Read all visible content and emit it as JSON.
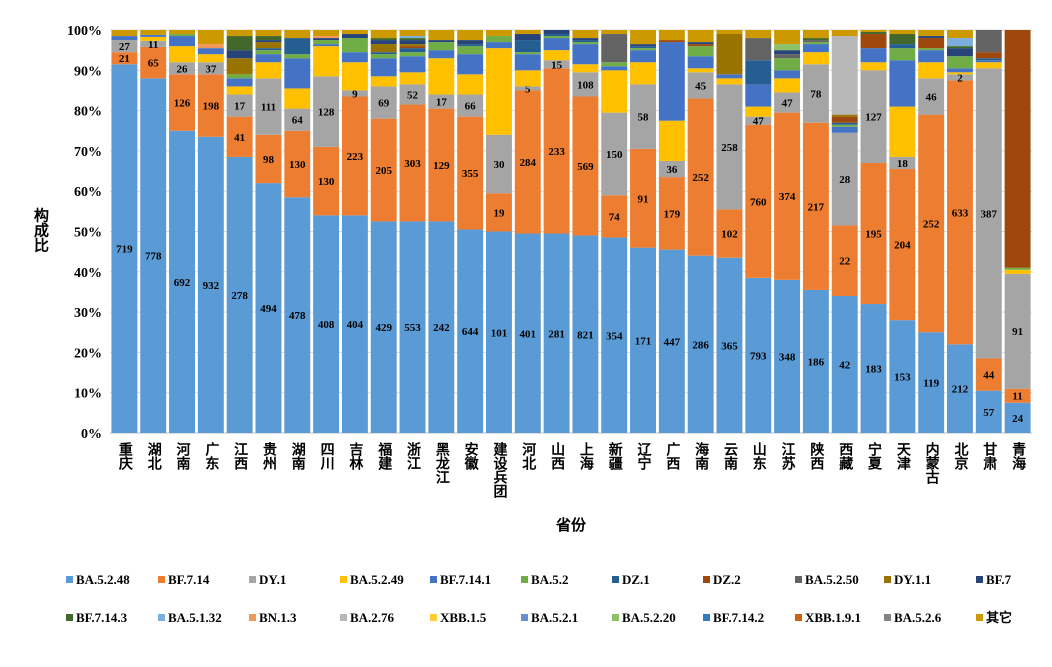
{
  "chart_data": {
    "type": "bar",
    "stacked": "percent",
    "title": "",
    "xlabel": "省份",
    "ylabel": "构成比",
    "ylim": [
      0,
      100
    ],
    "yticks": [
      "0%",
      "10%",
      "20%",
      "30%",
      "40%",
      "50%",
      "60%",
      "70%",
      "80%",
      "90%",
      "100%"
    ],
    "grid": true,
    "legend_position": "bottom",
    "categories": [
      "重庆",
      "湖北",
      "河南",
      "广东",
      "江西",
      "贵州",
      "湖南",
      "四川",
      "吉林",
      "福建",
      "浙江",
      "黑龙江",
      "安徽",
      "建设兵团",
      "河北",
      "山西",
      "上海",
      "新疆",
      "辽宁",
      "广西",
      "海南",
      "云南",
      "山东",
      "江苏",
      "陕西",
      "西藏",
      "宁夏",
      "天津",
      "内蒙古",
      "北京",
      "甘肃",
      "青海"
    ],
    "series": [
      {
        "name": "BA.5.2.48",
        "color": "#5B9BD5",
        "values": [
          91.5,
          88,
          75,
          73.5,
          68.5,
          62,
          58.5,
          54,
          54,
          52.5,
          52.5,
          52.5,
          50.5,
          50,
          49.5,
          49.5,
          49,
          48.5,
          46,
          45.5,
          44,
          43.5,
          38.5,
          38,
          35.5,
          34,
          32,
          28,
          25,
          22,
          10.5,
          7.5
        ],
        "labels": [
          719,
          778,
          692,
          932,
          278,
          494,
          478,
          408,
          404,
          429,
          553,
          242,
          644,
          101,
          401,
          281,
          821,
          354,
          171,
          447,
          286,
          365,
          793,
          348,
          186,
          42,
          183,
          153,
          119,
          212,
          57,
          24
        ]
      },
      {
        "name": "BF.7.14",
        "color": "#ED7D31",
        "values": [
          3,
          7.8,
          14,
          15.5,
          10,
          12,
          16.5,
          17,
          29.5,
          25.5,
          29,
          28,
          28,
          9.5,
          35.5,
          41,
          34.5,
          10.5,
          24.5,
          18,
          39,
          12,
          38,
          41.5,
          41.5,
          17.5,
          35,
          37.5,
          54,
          65.5,
          8,
          3.5
        ],
        "labels": [
          21,
          65,
          126,
          198,
          41,
          98,
          130,
          130,
          223,
          205,
          303,
          129,
          355,
          19,
          284,
          233,
          569,
          74,
          91,
          179,
          252,
          102,
          760,
          374,
          217,
          22,
          195,
          204,
          252,
          633,
          44,
          11
        ]
      },
      {
        "name": "DY.1",
        "color": "#A5A5A5",
        "values": [
          3,
          1.5,
          3,
          3,
          5.5,
          14,
          5.5,
          17.5,
          1.5,
          8,
          5,
          3.5,
          5.5,
          14.5,
          1,
          2,
          6,
          20.5,
          16,
          4,
          6.5,
          31,
          2,
          5,
          14.5,
          23,
          23,
          3,
          9,
          1.5,
          72,
          28.5
        ],
        "labels": [
          27,
          11,
          26,
          37,
          17,
          111,
          64,
          128,
          9,
          69,
          52,
          17,
          66,
          30,
          5,
          15,
          108,
          150,
          58,
          36,
          45,
          258,
          47,
          47,
          78,
          28,
          127,
          18,
          46,
          2,
          387,
          91
        ]
      },
      {
        "name": "BA.5.2.49",
        "color": "#FFC000",
        "values": [
          0,
          1,
          4,
          2,
          2,
          4,
          5,
          7.5,
          7,
          2.5,
          3,
          9,
          5,
          21.5,
          4,
          2.5,
          2,
          10.5,
          5.5,
          10,
          1,
          1.5,
          2.5,
          3.5,
          3,
          0,
          2,
          12.5,
          4,
          0.5,
          1.5,
          1
        ]
      },
      {
        "name": "BF.7.14.1",
        "color": "#4472C4",
        "values": [
          1,
          0.5,
          2.5,
          1.5,
          2,
          2,
          7.5,
          0.5,
          2.5,
          4.5,
          4,
          2,
          5,
          1.5,
          4,
          3,
          5,
          1,
          3,
          19.5,
          3,
          1,
          5.5,
          2,
          2,
          1.5,
          3.5,
          11.5,
          3,
          1,
          0.5,
          0
        ]
      },
      {
        "name": "BA.5.2",
        "color": "#70AD47",
        "values": [
          0,
          0,
          0.5,
          0,
          1,
          1,
          1,
          1,
          3.5,
          1,
          1,
          2,
          2,
          1.5,
          0.5,
          0.5,
          0.5,
          1,
          0.5,
          0,
          2.5,
          0,
          0,
          3,
          0.5,
          0.5,
          0,
          3,
          0.5,
          3,
          0,
          0.5
        ]
      },
      {
        "name": "DZ.1",
        "color": "#255E91",
        "values": [
          0,
          0,
          0,
          0,
          0,
          0.5,
          4,
          0,
          0,
          0.5,
          1,
          0,
          0.5,
          0,
          3,
          0.5,
          0.5,
          0,
          0.5,
          0,
          0,
          0,
          6,
          0,
          0,
          0.5,
          0,
          1,
          0,
          0,
          0.5,
          0
        ]
      },
      {
        "name": "DZ.2",
        "color": "#9E480E",
        "values": [
          0,
          0,
          0,
          0,
          0,
          0,
          0,
          0,
          0,
          0,
          0.5,
          0,
          0,
          0,
          0,
          0,
          0,
          0,
          0,
          0.5,
          0.5,
          0,
          0,
          0,
          0,
          1.5,
          3.5,
          0,
          2.5,
          0,
          1.5,
          59
        ]
      },
      {
        "name": "BA.5.2.50",
        "color": "#636363",
        "values": [
          0,
          0,
          0,
          0,
          0,
          0,
          0,
          0,
          0,
          0,
          0,
          0,
          0,
          0,
          0,
          0,
          0,
          7,
          0,
          0,
          0,
          0,
          5.5,
          1,
          0.5,
          0,
          0,
          0,
          0,
          0,
          5.5,
          0
        ]
      },
      {
        "name": "DY.1.1",
        "color": "#997300",
        "values": [
          0,
          0,
          0,
          0,
          4,
          1.5,
          0,
          0,
          0,
          2,
          0.5,
          0,
          0,
          0,
          0,
          0,
          0,
          0,
          0,
          0,
          0,
          10,
          0,
          0,
          0,
          0.5,
          0,
          0,
          0,
          0,
          0,
          0
        ]
      },
      {
        "name": "BF.7",
        "color": "#264478",
        "values": [
          0,
          0,
          0,
          0,
          2,
          0.5,
          0,
          0.5,
          1,
          1,
          1,
          0.5,
          1,
          0,
          1.5,
          1,
          0.5,
          0,
          0.5,
          0,
          0.5,
          0,
          0,
          1,
          0,
          0,
          0,
          0,
          0.5,
          2,
          0,
          0
        ]
      },
      {
        "name": "BF.7.14.3",
        "color": "#43682B",
        "values": [
          0,
          0,
          0,
          0,
          3.5,
          1,
          0,
          0,
          0,
          0.5,
          0.5,
          0,
          0,
          0,
          0,
          0,
          0,
          0,
          0,
          0,
          0,
          0,
          0,
          0,
          0.5,
          0,
          0.5,
          2.5,
          0,
          0.5,
          0,
          0
        ]
      },
      {
        "name": "BA.5.1.32",
        "color": "#7CAFDD",
        "values": [
          0,
          0,
          0,
          0,
          0,
          0,
          0,
          0,
          0,
          0,
          0.5,
          0,
          0,
          0,
          0,
          0,
          0,
          0,
          0,
          0,
          0,
          0,
          0,
          0,
          0,
          0,
          0,
          0,
          0,
          2,
          0,
          0
        ]
      },
      {
        "name": "BN.1.3",
        "color": "#F1975A",
        "values": [
          0,
          0,
          0,
          1,
          0,
          0,
          0,
          0.5,
          0,
          0,
          0,
          0,
          0,
          0,
          0,
          0,
          0,
          0,
          0,
          0,
          0,
          0,
          0,
          0,
          0,
          0,
          0,
          0,
          0,
          0,
          0,
          0
        ]
      },
      {
        "name": "BA.2.76",
        "color": "#B7B7B7",
        "values": [
          0,
          0,
          0,
          0,
          0,
          0,
          0,
          0,
          0,
          0,
          0,
          0,
          0,
          0,
          0,
          0,
          0,
          0,
          0,
          0,
          0,
          0,
          0,
          0,
          0,
          19.5,
          0,
          0,
          0,
          0,
          0,
          0
        ]
      },
      {
        "name": "XBB.1.5",
        "color": "#FFCD33",
        "values": [
          0,
          0,
          0,
          0,
          0,
          0,
          0,
          0,
          0,
          0,
          0,
          0,
          0,
          0,
          0,
          0,
          0,
          0,
          0,
          0,
          0,
          0,
          0,
          0,
          0,
          0,
          0,
          0,
          0,
          0,
          0,
          0
        ]
      },
      {
        "name": "BA.5.2.1",
        "color": "#698ED0",
        "values": [
          0,
          0,
          0,
          0,
          0,
          0,
          0,
          0,
          0,
          0,
          0,
          0,
          0,
          0,
          0,
          0,
          0,
          0,
          0,
          0,
          0,
          0,
          0,
          0,
          0,
          0,
          0,
          0,
          0,
          0,
          0,
          0
        ]
      },
      {
        "name": "BA.5.2.20",
        "color": "#8CC168",
        "values": [
          0,
          0,
          0,
          0,
          0,
          0,
          0,
          0,
          0,
          0,
          0,
          0,
          0,
          0,
          0,
          0,
          0,
          0,
          0,
          0,
          0,
          0,
          0,
          1.5,
          0,
          0,
          0,
          0,
          0,
          0,
          0,
          0
        ]
      },
      {
        "name": "BF.7.14.2",
        "color": "#327DC2",
        "values": [
          0,
          0,
          0,
          0,
          0,
          0,
          0,
          0,
          0,
          0,
          0,
          0,
          0,
          0,
          0,
          0,
          0,
          0,
          0,
          0,
          0,
          0,
          0,
          0,
          0,
          0,
          0,
          0,
          0,
          0,
          0,
          0
        ]
      },
      {
        "name": "XBB.1.9.1",
        "color": "#D26012",
        "values": [
          0,
          0,
          0,
          0,
          0,
          0,
          0,
          0,
          0,
          0,
          0,
          0,
          0,
          0,
          0,
          0,
          0,
          0,
          0,
          0,
          0,
          0,
          0,
          0,
          0,
          0,
          0,
          0,
          0,
          0,
          0,
          0
        ]
      },
      {
        "name": "BA.5.2.6",
        "color": "#848484",
        "values": [
          0,
          0,
          0,
          0,
          0,
          0,
          0,
          0,
          0,
          0,
          0,
          0,
          0,
          0,
          0,
          0,
          0,
          0,
          0,
          0,
          0,
          0,
          0,
          0,
          0,
          0,
          0,
          0,
          0,
          0,
          0,
          0
        ]
      },
      {
        "name": "其它",
        "color": "#CC9A00",
        "values": "remainder"
      }
    ]
  }
}
